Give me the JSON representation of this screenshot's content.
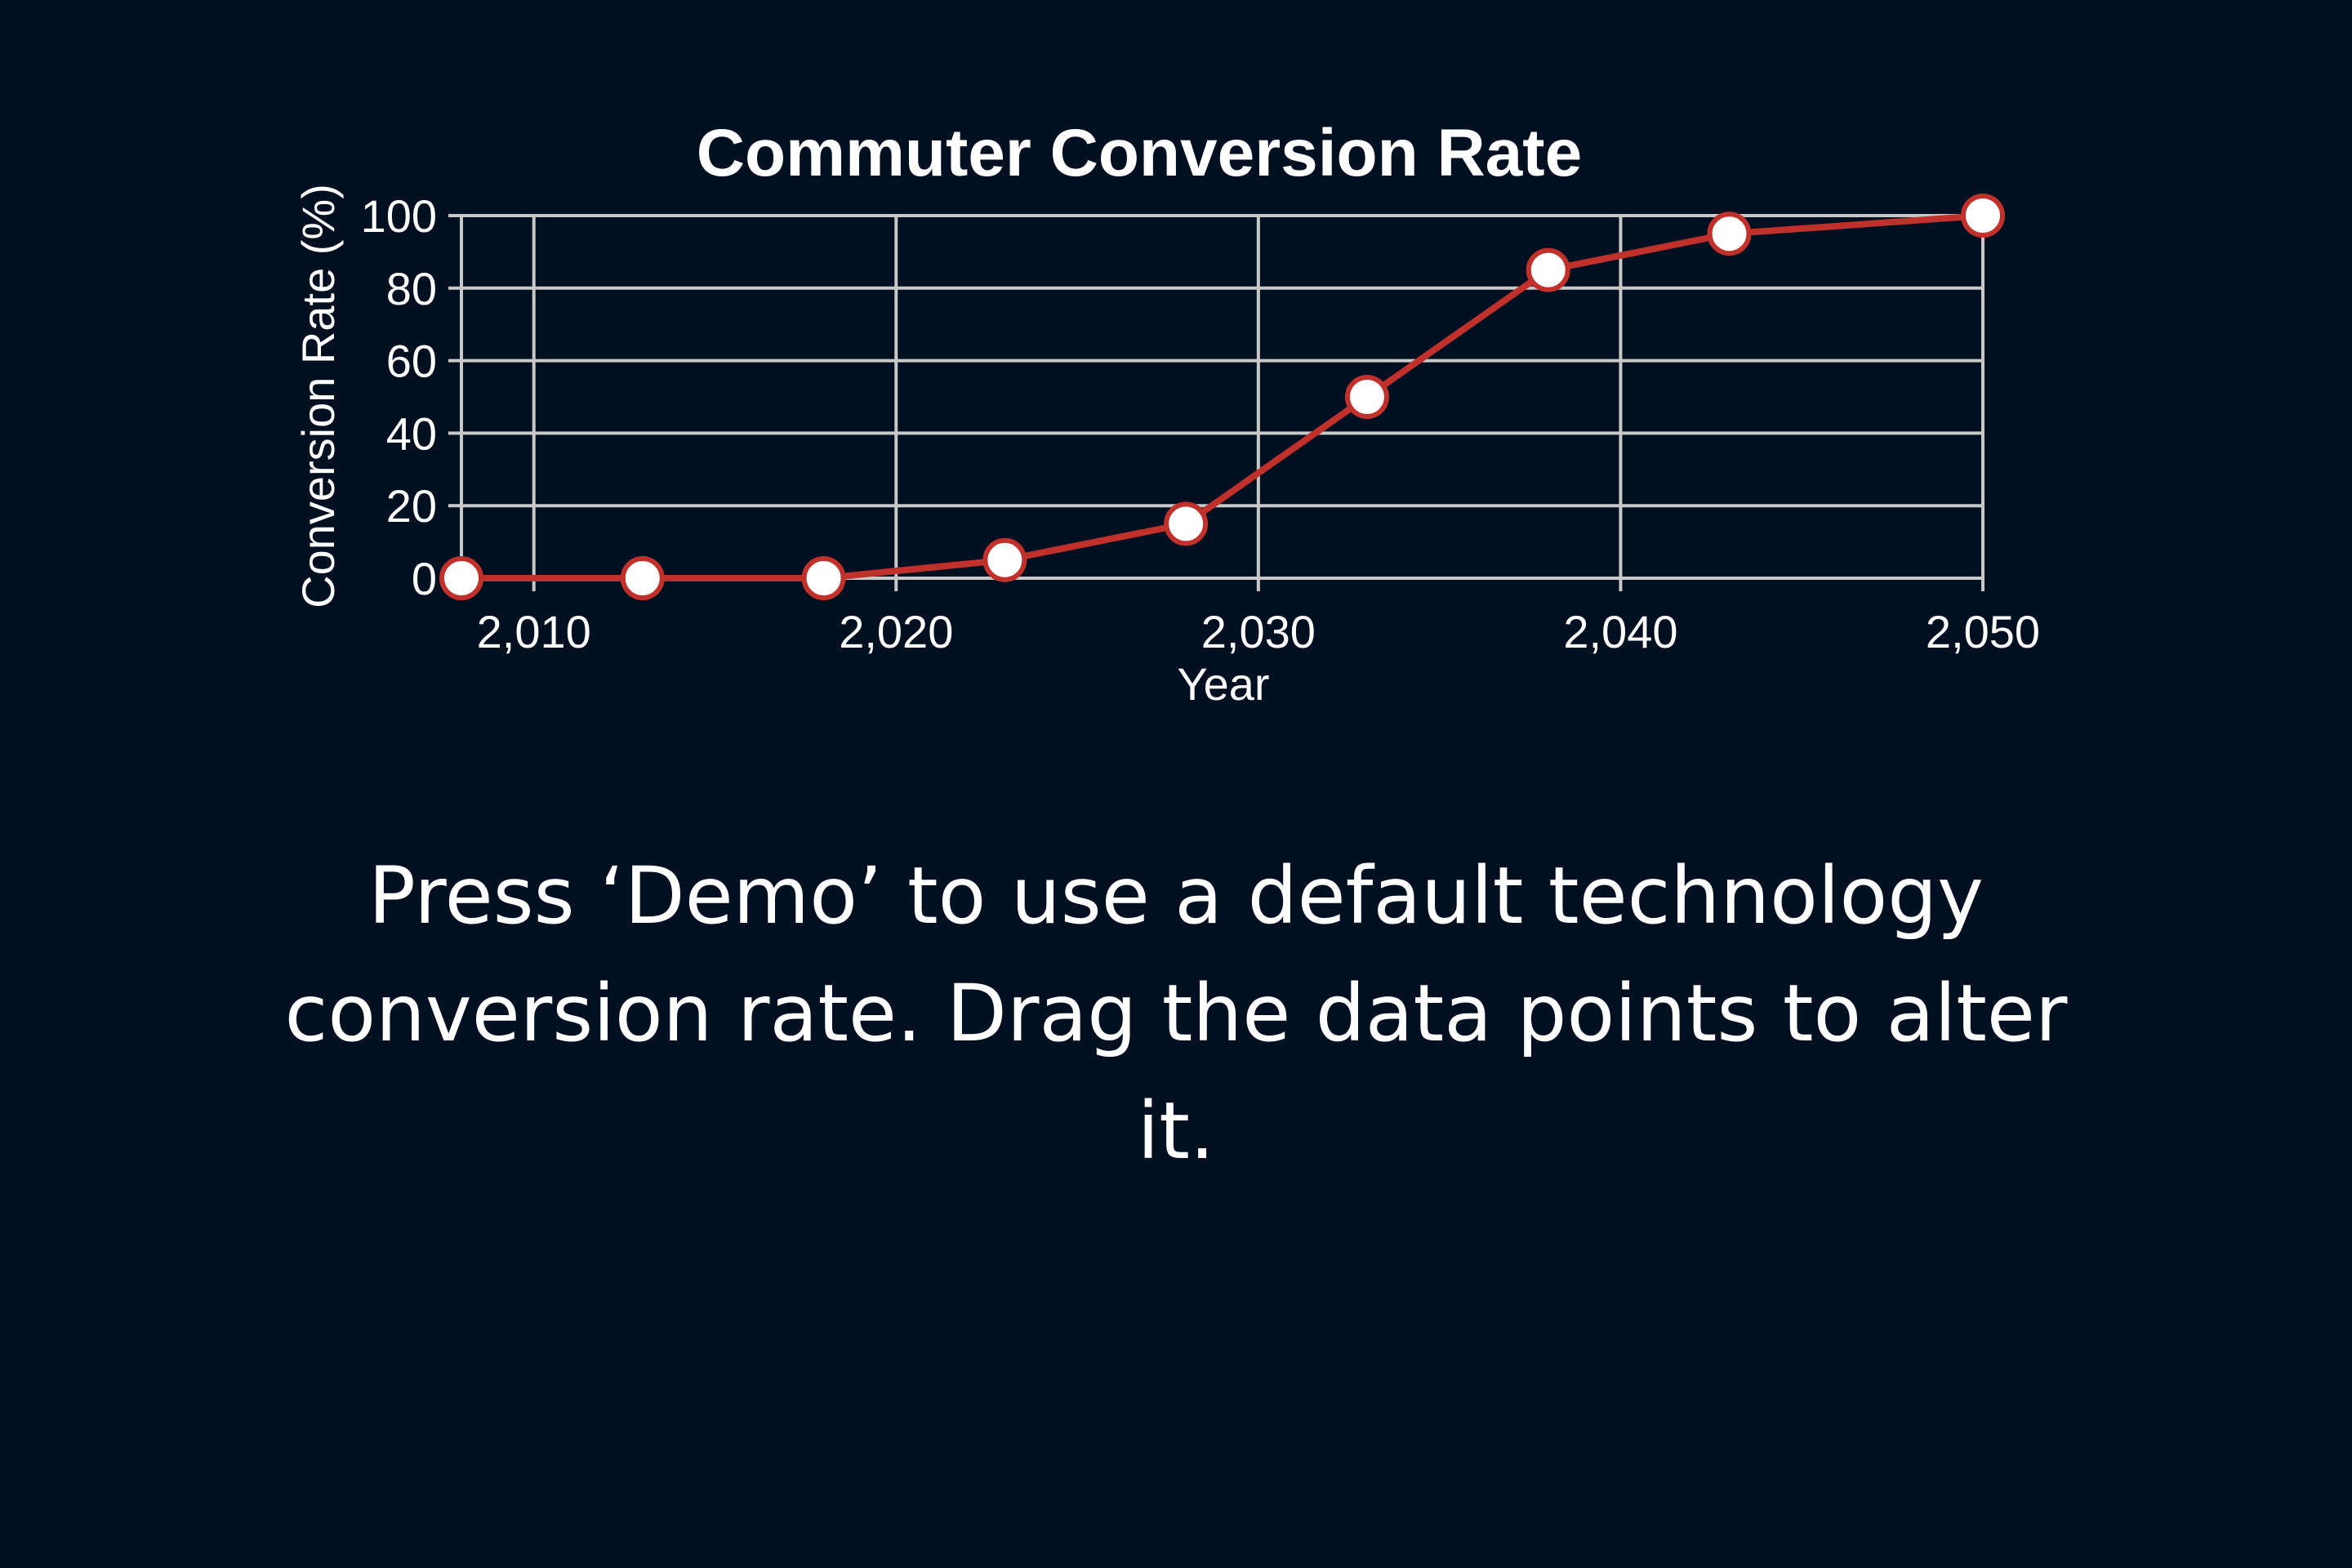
{
  "chart_data": {
    "type": "line",
    "title": "Commuter Conversion Rate",
    "xlabel": "Year",
    "ylabel": "Conversion Rate (%)",
    "xlim": [
      2008,
      2050
    ],
    "ylim": [
      0,
      100
    ],
    "x_ticks": [
      2010,
      2020,
      2030,
      2040,
      2050
    ],
    "x_tick_labels": [
      "2,010",
      "2,020",
      "2,030",
      "2,040",
      "2,050"
    ],
    "y_ticks": [
      0,
      20,
      40,
      60,
      80,
      100
    ],
    "y_tick_labels": [
      "0",
      "20",
      "40",
      "60",
      "80",
      "100"
    ],
    "grid": true,
    "colors": {
      "line": "#c0312b",
      "point_fill": "#ffffff",
      "grid": "#c8c8c8",
      "background": "#011020"
    },
    "series": [
      {
        "x": [
          2008,
          2013,
          2018,
          2023,
          2028,
          2033,
          2038,
          2043,
          2050
        ],
        "values": [
          0,
          0,
          0,
          5,
          15,
          50,
          85,
          95,
          100
        ]
      }
    ]
  },
  "instructions": {
    "text": "Press ‘Demo’ to use a default technology conversion rate. Drag the data points to alter it."
  }
}
